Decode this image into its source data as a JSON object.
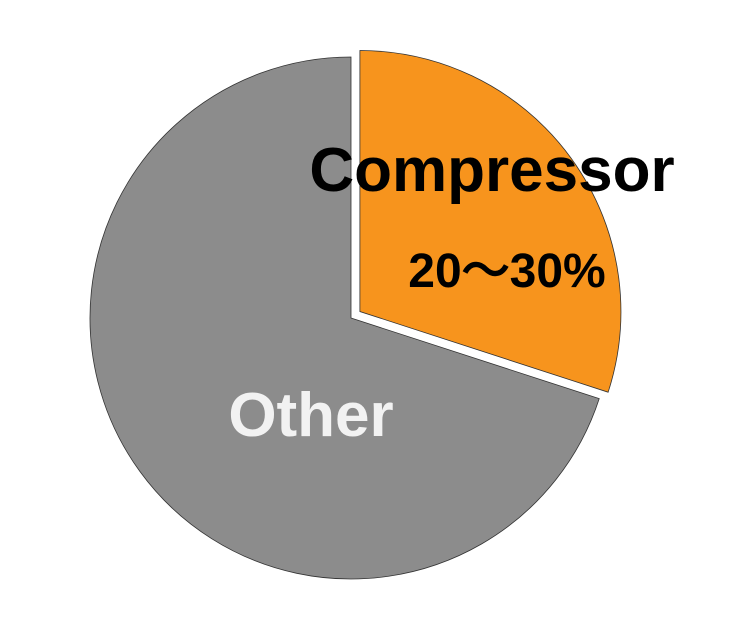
{
  "chart_data": {
    "type": "pie",
    "title": "",
    "slices": [
      {
        "name": "Compressor",
        "label": "Compressor",
        "value_label": "20〜30%",
        "value": 30,
        "color": "#f7941d",
        "exploded": true
      },
      {
        "name": "Other",
        "label": "Other",
        "value": 70,
        "color": "#8c8c8c",
        "exploded": false
      }
    ],
    "legend": "none",
    "label_colors": {
      "Compressor": "#000000",
      "Other": "#f2f2f2"
    }
  }
}
